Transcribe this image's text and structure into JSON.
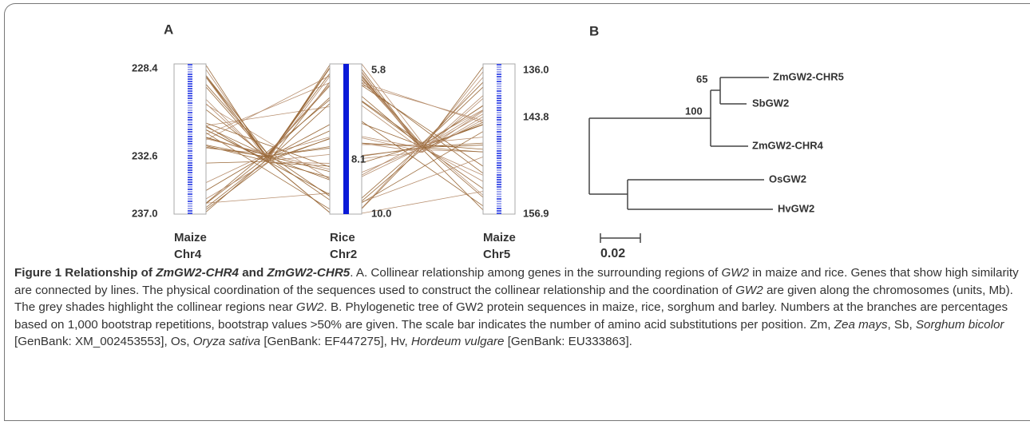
{
  "panel_a": {
    "label": "A",
    "chromosomes": [
      {
        "name": "Maize\nChr4",
        "coords": [
          "228.4",
          "232.6",
          "237.0"
        ]
      },
      {
        "name": "Rice\nChr2",
        "coords": [
          "5.8",
          "8.1",
          "10.0"
        ]
      },
      {
        "name": "Maize\nChr5",
        "coords": [
          "136.0",
          "143.8",
          "156.9"
        ]
      }
    ]
  },
  "panel_b": {
    "label": "B",
    "leaves": [
      "ZmGW2-CHR5",
      "SbGW2",
      "ZmGW2-CHR4",
      "OsGW2",
      "HvGW2"
    ],
    "bootstrap": [
      "65",
      "100"
    ],
    "scale": "0.02"
  },
  "caption": {
    "runs": [
      {
        "text": "Figure 1 Relationship of ",
        "style": "bold"
      },
      {
        "text": "ZmGW2-CHR4",
        "style": "bold-italic"
      },
      {
        "text": " and ",
        "style": "bold"
      },
      {
        "text": "ZmGW2-CHR5",
        "style": "bold-italic"
      },
      {
        "text": ". A. Collinear relationship among genes in the surrounding regions of ",
        "style": "normal"
      },
      {
        "text": "GW2",
        "style": "italic"
      },
      {
        "text": " in maize and rice. Genes that show high similarity are connected by lines. The physical coordination of the sequences used to construct the collinear relationship and the coordination of ",
        "style": "normal"
      },
      {
        "text": "GW2",
        "style": "italic"
      },
      {
        "text": " are given along the chromosomes (units, Mb). The grey shades highlight the collinear regions near ",
        "style": "normal"
      },
      {
        "text": "GW2",
        "style": "italic"
      },
      {
        "text": ". B. Phylogenetic tree of GW2 protein sequences in maize, rice, sorghum and barley. Numbers at the branches are percentages based on 1,000 bootstrap repetitions, bootstrap values >50% are given. The scale bar indicates the number of amino acid substitutions per position. Zm, ",
        "style": "normal"
      },
      {
        "text": "Zea mays",
        "style": "italic"
      },
      {
        "text": ", Sb, ",
        "style": "normal"
      },
      {
        "text": "Sorghum bicolor",
        "style": "italic"
      },
      {
        "text": " [GenBank: XM_002453553], Os, ",
        "style": "normal"
      },
      {
        "text": "Oryza sativa",
        "style": "italic"
      },
      {
        "text": " [GenBank: EF447275], Hv, ",
        "style": "normal"
      },
      {
        "text": "Hordeum vulgare",
        "style": "italic"
      },
      {
        "text": " [GenBank: EU333863].",
        "style": "normal"
      }
    ]
  }
}
